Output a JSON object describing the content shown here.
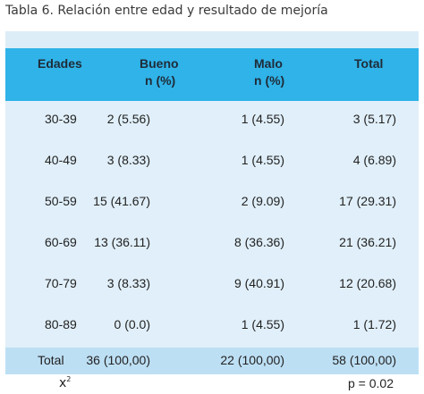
{
  "caption": "Tabla 6. Relación entre edad y resultado de mejoría",
  "headers": {
    "edades": "Edades",
    "bueno_1": "Bueno",
    "bueno_2": "n (%)",
    "malo_1": "Malo",
    "malo_2": "n (%)",
    "total": "Total"
  },
  "rows": [
    {
      "edad": "30-39",
      "bueno": "2 (5.56)",
      "malo": "1 (4.55)",
      "total": "3 (5.17)"
    },
    {
      "edad": "40-49",
      "bueno": "3 (8.33)",
      "malo": "1 (4.55)",
      "total": "4 (6.89)"
    },
    {
      "edad": "50-59",
      "bueno": "15 (41.67)",
      "malo": "2 (9.09)",
      "total": "17 (29.31)"
    },
    {
      "edad": "60-69",
      "bueno": "13 (36.11)",
      "malo": "8 (36.36)",
      "total": "21 (36.21)"
    },
    {
      "edad": "70-79",
      "bueno": "3 (8.33)",
      "malo": "9 (40.91)",
      "total": "12 (20.68)"
    },
    {
      "edad": "80-89",
      "bueno": "0 (0.0)",
      "malo": "1 (4.55)",
      "total": "1 (1.72)"
    }
  ],
  "footer": {
    "label": "Total",
    "bueno": "36 (100,00)",
    "malo": "22 (100,00)",
    "total": "58 (100,00)"
  },
  "stats": {
    "chi_symbol": "x",
    "chi_exp": "2",
    "p_value": "p = 0.02"
  },
  "colors": {
    "header_bg": "#2fb3e8",
    "body_bg": "#e0eff9",
    "footer_bg": "#bddff4"
  }
}
